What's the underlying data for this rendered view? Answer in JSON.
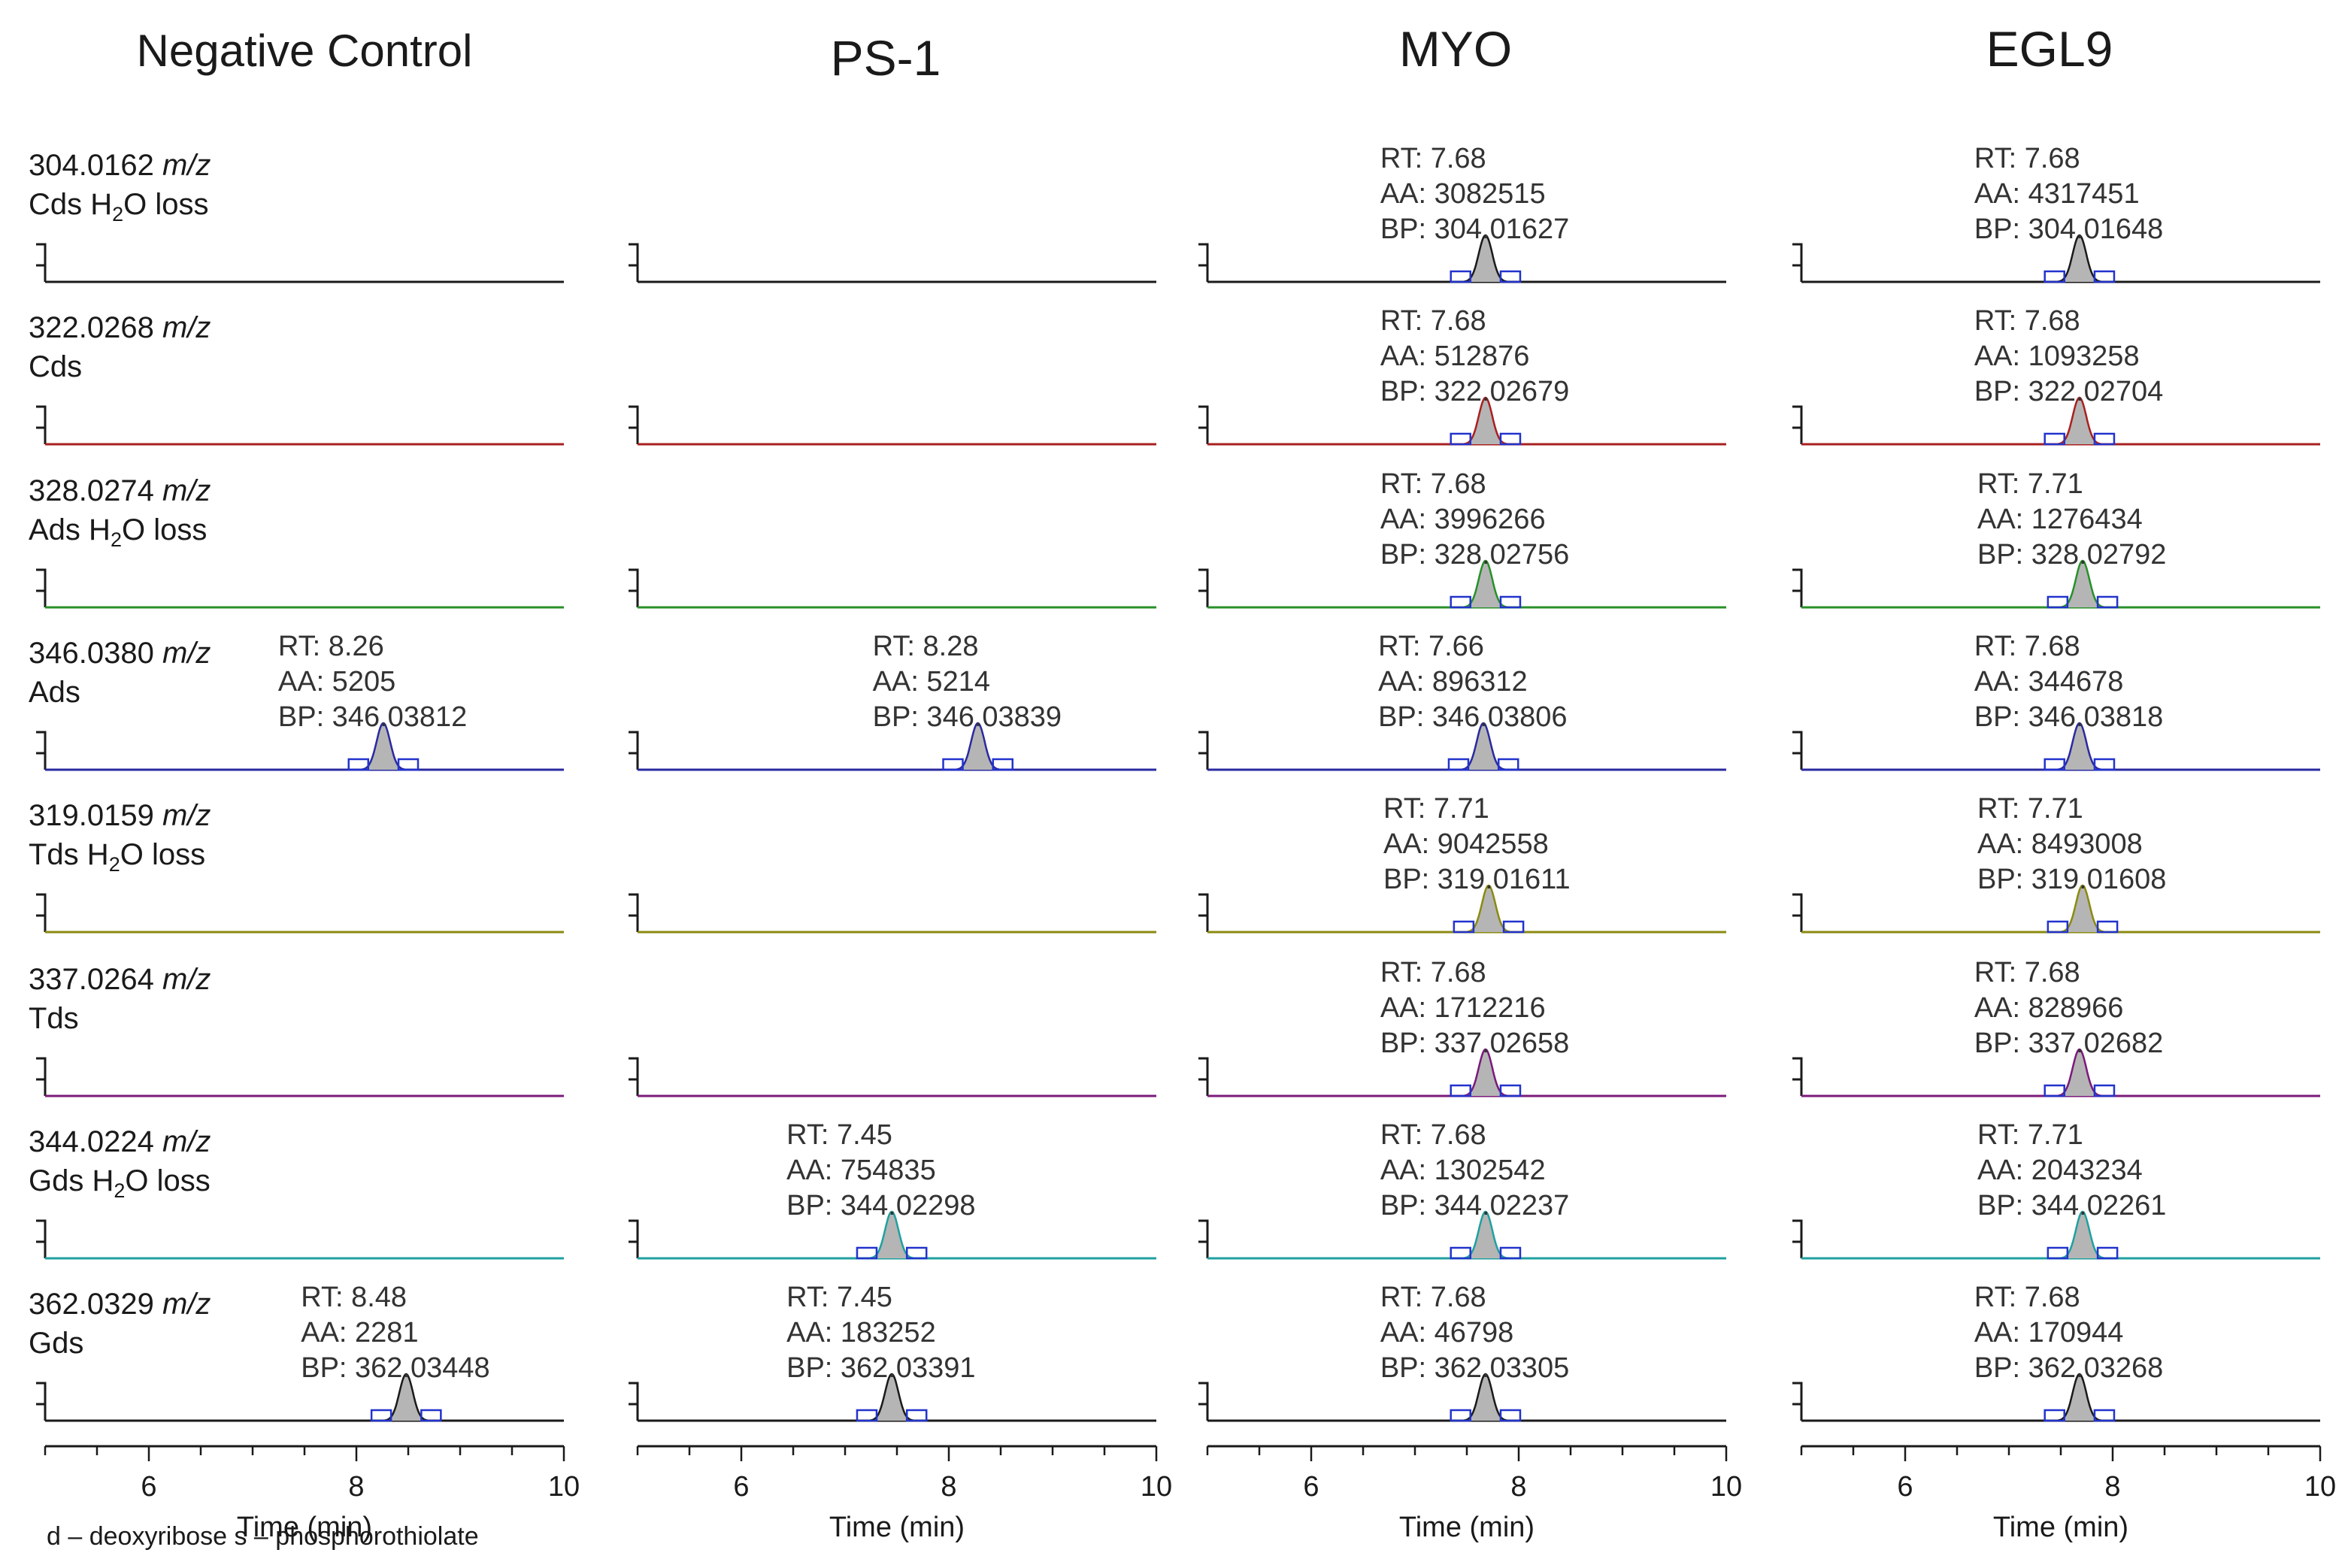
{
  "chart_data": {
    "type": "line",
    "description": "Extracted ion chromatograms grid",
    "columns": [
      "Negative Control",
      "PS-1",
      "MYO",
      "EGL9"
    ],
    "rows": [
      {
        "mz": "304.0162",
        "unit": "m/z",
        "name": "Cds",
        "h2o": true,
        "color": "#1a1a1a"
      },
      {
        "mz": "322.0268",
        "unit": "m/z",
        "name": "Cds",
        "h2o": false,
        "color": "#a82020"
      },
      {
        "mz": "328.0274",
        "unit": "m/z",
        "name": "Ads",
        "h2o": true,
        "color": "#28902a"
      },
      {
        "mz": "346.0380",
        "unit": "m/z",
        "name": "Ads",
        "h2o": false,
        "color": "#2a2aa0"
      },
      {
        "mz": "319.0159",
        "unit": "m/z",
        "name": "Tds",
        "h2o": true,
        "color": "#8a8a10"
      },
      {
        "mz": "337.0264",
        "unit": "m/z",
        "name": "Tds",
        "h2o": false,
        "color": "#7a1a7a"
      },
      {
        "mz": "344.0224",
        "unit": "m/z",
        "name": "Gds",
        "h2o": true,
        "color": "#20a0a0"
      },
      {
        "mz": "362.0329",
        "unit": "m/z",
        "name": "Gds",
        "h2o": false,
        "color": "#1a1a1a"
      }
    ],
    "peaks": [
      {
        "col": 0,
        "row": 3,
        "rt": 8.26,
        "lines": [
          "RT: 8.26",
          "AA: 5205",
          "BP: 346.03812"
        ]
      },
      {
        "col": 0,
        "row": 7,
        "rt": 8.48,
        "lines": [
          "RT: 8.48",
          "AA: 2281",
          "BP: 362.03448"
        ]
      },
      {
        "col": 1,
        "row": 3,
        "rt": 8.28,
        "lines": [
          "RT: 8.28",
          "AA: 5214",
          "BP: 346.03839"
        ]
      },
      {
        "col": 1,
        "row": 6,
        "rt": 7.45,
        "lines": [
          "RT: 7.45",
          "AA: 754835",
          "BP: 344.02298"
        ]
      },
      {
        "col": 1,
        "row": 7,
        "rt": 7.45,
        "lines": [
          "RT: 7.45",
          "AA: 183252",
          "BP: 362.03391"
        ]
      },
      {
        "col": 2,
        "row": 0,
        "rt": 7.68,
        "lines": [
          "RT: 7.68",
          "AA: 3082515",
          "BP: 304.01627"
        ]
      },
      {
        "col": 2,
        "row": 1,
        "rt": 7.68,
        "lines": [
          "RT: 7.68",
          "AA: 512876",
          "BP: 322.02679"
        ]
      },
      {
        "col": 2,
        "row": 2,
        "rt": 7.68,
        "lines": [
          "RT: 7.68",
          "AA: 3996266",
          "BP: 328.02756"
        ]
      },
      {
        "col": 2,
        "row": 3,
        "rt": 7.66,
        "lines": [
          "RT: 7.66",
          "AA: 896312",
          "BP: 346.03806"
        ]
      },
      {
        "col": 2,
        "row": 4,
        "rt": 7.71,
        "lines": [
          "RT: 7.71",
          "AA: 9042558",
          "BP: 319.01611"
        ]
      },
      {
        "col": 2,
        "row": 5,
        "rt": 7.68,
        "lines": [
          "RT: 7.68",
          "AA: 1712216",
          "BP: 337.02658"
        ]
      },
      {
        "col": 2,
        "row": 6,
        "rt": 7.68,
        "lines": [
          "RT: 7.68",
          "AA: 1302542",
          "BP: 344.02237"
        ]
      },
      {
        "col": 2,
        "row": 7,
        "rt": 7.68,
        "lines": [
          "RT: 7.68",
          "AA: 46798",
          "BP: 362.03305"
        ]
      },
      {
        "col": 3,
        "row": 0,
        "rt": 7.68,
        "lines": [
          "RT: 7.68",
          "AA: 4317451",
          "BP: 304.01648"
        ]
      },
      {
        "col": 3,
        "row": 1,
        "rt": 7.68,
        "lines": [
          "RT: 7.68",
          "AA: 1093258",
          "BP: 322.02704"
        ]
      },
      {
        "col": 3,
        "row": 2,
        "rt": 7.71,
        "lines": [
          "RT: 7.71",
          "AA: 1276434",
          "BP: 328.02792"
        ]
      },
      {
        "col": 3,
        "row": 3,
        "rt": 7.68,
        "lines": [
          "RT: 7.68",
          "AA: 344678",
          "BP: 346.03818"
        ]
      },
      {
        "col": 3,
        "row": 4,
        "rt": 7.71,
        "lines": [
          "RT: 7.71",
          "AA: 8493008",
          "BP: 319.01608"
        ]
      },
      {
        "col": 3,
        "row": 5,
        "rt": 7.68,
        "lines": [
          "RT: 7.68",
          "AA: 828966",
          "BP: 337.02682"
        ]
      },
      {
        "col": 3,
        "row": 6,
        "rt": 7.71,
        "lines": [
          "RT: 7.71",
          "AA: 2043234",
          "BP: 344.02261"
        ]
      },
      {
        "col": 3,
        "row": 7,
        "rt": 7.68,
        "lines": [
          "RT: 7.68",
          "AA: 170944",
          "BP: 362.03268"
        ]
      }
    ],
    "x": {
      "label": "Time (min)",
      "range": [
        5,
        10
      ],
      "major_ticks": [
        6,
        8,
        10
      ],
      "minor_step": 0.5
    },
    "h2o_suffix": {
      "main": "H",
      "sub": "2",
      "tail": "O loss"
    },
    "footnote": "d – deoxyribose s – phosphorothiolate"
  }
}
